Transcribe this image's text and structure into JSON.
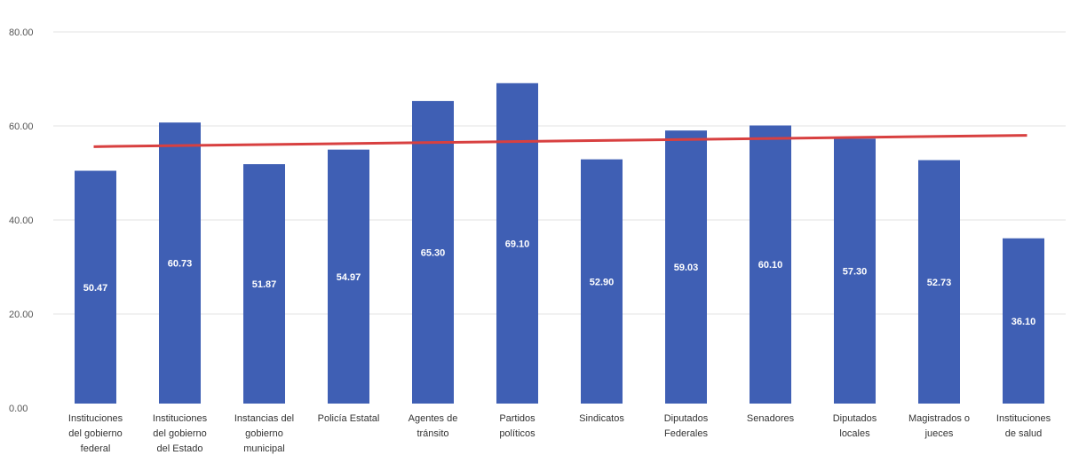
{
  "chart_data": {
    "type": "bar",
    "categories": [
      "Instituciones del gobierno federal",
      "Instituciones del gobierno del Estado",
      "Instancias del gobierno municipal",
      "Policía Estatal",
      "Agentes de tránsito",
      "Partidos políticos",
      "Sindicatos",
      "Diputados Federales",
      "Senadores",
      "Diputados locales",
      "Magistrados o jueces",
      "Instituciones de salud"
    ],
    "category_lines": [
      [
        "Instituciones",
        "del gobierno",
        "federal"
      ],
      [
        "Instituciones",
        "del gobierno",
        "del Estado"
      ],
      [
        "Instancias del",
        "gobierno",
        "municipal"
      ],
      [
        "Policía Estatal"
      ],
      [
        "Agentes de",
        "tránsito"
      ],
      [
        "Partidos",
        "políticos"
      ],
      [
        "Sindicatos"
      ],
      [
        "Diputados",
        "Federales"
      ],
      [
        "Senadores"
      ],
      [
        "Diputados",
        "locales"
      ],
      [
        "Magistrados o",
        "jueces"
      ],
      [
        "Instituciones",
        "de salud"
      ]
    ],
    "values": [
      50.47,
      60.73,
      51.87,
      54.97,
      65.3,
      69.1,
      52.9,
      59.03,
      60.1,
      57.3,
      52.73,
      36.1
    ],
    "data_labels": [
      "50.47",
      "60.73",
      "51.87",
      "54.97",
      "65.30",
      "69.10",
      "52.90",
      "59.03",
      "60.10",
      "57.30",
      "52.73",
      "36.10"
    ],
    "trendline": {
      "start": 55.6,
      "end": 58.0
    },
    "ylim": [
      0,
      80
    ],
    "yticks": [
      0,
      20,
      40,
      60,
      80
    ],
    "ytick_labels": [
      "0.00",
      "20.00",
      "40.00",
      "60.00",
      "80.00"
    ],
    "grid": true,
    "legend": "none",
    "colors": {
      "bar": "#3F5FB4",
      "trendline": "#D84040",
      "grid": "#E3E3E3",
      "axis_text": "#555555",
      "label_text": "#FFFFFF"
    }
  }
}
